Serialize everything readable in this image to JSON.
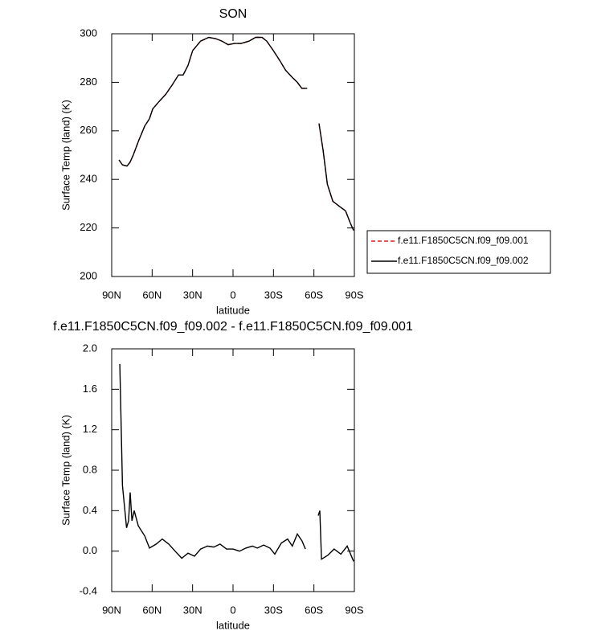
{
  "chart_data": [
    {
      "type": "line",
      "title": "SON",
      "xlabel": "latitude",
      "ylabel": "Surface Temp (land) (K)",
      "x": [
        84.6,
        82,
        78.7,
        76.5,
        74,
        70,
        65.5,
        62,
        59.6,
        55,
        50,
        45,
        40.5,
        37,
        33.4,
        30,
        24,
        18,
        13,
        8.3,
        3.6,
        -1,
        -6,
        -12,
        -16.7,
        -21.5,
        -25,
        -30,
        -34.6,
        -39,
        -44,
        -47.7,
        -51,
        -55,
        -59,
        -63.8,
        -66.8,
        -70,
        -74,
        -78.7,
        -83.5,
        -87,
        -89.4
      ],
      "series": [
        {
          "name": "f.e11.F1850C5CN.f09_f09.001",
          "color": "#e41a1c",
          "dash": true,
          "values": [
            248,
            246,
            245.5,
            247,
            250,
            256,
            262,
            265,
            269,
            272,
            275,
            279,
            283,
            283,
            287,
            293,
            297,
            298.5,
            298,
            297,
            295.5,
            296,
            296,
            297,
            298.5,
            298.5,
            297,
            293,
            289,
            285,
            282,
            280,
            277.5,
            277.5,
            null,
            263,
            252,
            238,
            231,
            229,
            227,
            222,
            219
          ]
        },
        {
          "name": "f.e11.F1850C5CN.f09_f09.002",
          "color": "#000000",
          "dash": false,
          "values": [
            248,
            246,
            245.5,
            247,
            250,
            256,
            262,
            265,
            269,
            272,
            275,
            279,
            283,
            283,
            287,
            293,
            297,
            298.5,
            298,
            297,
            295.5,
            296,
            296,
            297,
            298.5,
            298.5,
            297,
            293,
            289,
            285,
            282,
            280,
            277.5,
            277.5,
            null,
            263,
            252,
            238,
            231,
            229,
            227,
            222,
            219
          ]
        }
      ],
      "xlim": [
        90,
        -90
      ],
      "xticks": [
        {
          "value": 90,
          "label": "90N"
        },
        {
          "value": 60,
          "label": "60N"
        },
        {
          "value": 30,
          "label": "30N"
        },
        0,
        {
          "value": -30,
          "label": "30S"
        },
        {
          "value": -60,
          "label": "60S"
        },
        {
          "value": -90,
          "label": "90S"
        }
      ],
      "ylim": [
        200,
        300
      ],
      "yticks": [
        200,
        220,
        240,
        260,
        280,
        300
      ],
      "legend": "right"
    },
    {
      "type": "line",
      "title": "f.e11.F1850C5CN.f09_f09.002 - f.e11.F1850C5CN.f09_f09.001",
      "xlabel": "latitude",
      "ylabel": "Surface Temp (land) (K)",
      "x": [
        84,
        82,
        79,
        77.5,
        76.3,
        75,
        73.3,
        70.3,
        65.5,
        62,
        57,
        52.5,
        47.7,
        43,
        38,
        33.4,
        28.6,
        24,
        19,
        14.3,
        9.6,
        4.8,
        0,
        -4.8,
        -9.5,
        -14.3,
        -18,
        -22.7,
        -27.4,
        -31,
        -35.8,
        -40.5,
        -44,
        -47.7,
        -51.2,
        -53.7,
        -59,
        -63.2,
        -64.4,
        -65.6,
        -70.4,
        -75,
        -80,
        -84.7,
        -89.4
      ],
      "values": [
        1.85,
        0.65,
        0.23,
        0.3,
        0.58,
        0.3,
        0.4,
        0.25,
        0.15,
        0.03,
        0.07,
        0.12,
        0.07,
        0.0,
        -0.07,
        -0.02,
        -0.05,
        0.02,
        0.05,
        0.04,
        0.07,
        0.02,
        0.02,
        0.0,
        0.03,
        0.05,
        0.03,
        0.06,
        0.03,
        -0.03,
        0.08,
        0.12,
        0.05,
        0.17,
        0.1,
        0.02,
        null,
        0.35,
        0.4,
        -0.08,
        -0.04,
        0.02,
        -0.03,
        0.05,
        -0.1
      ],
      "color": "#000000",
      "xlim": [
        90,
        -90
      ],
      "xticks": [
        {
          "value": 90,
          "label": "90N"
        },
        {
          "value": 60,
          "label": "60N"
        },
        {
          "value": 30,
          "label": "30N"
        },
        0,
        {
          "value": -30,
          "label": "30S"
        },
        {
          "value": -60,
          "label": "60S"
        },
        {
          "value": -90,
          "label": "90S"
        }
      ],
      "ylim": [
        -0.4,
        2.0
      ],
      "yticks": [
        -0.4,
        {
          "value": 0,
          "label": "0.0"
        },
        0.4,
        0.8,
        1.2,
        1.6,
        {
          "value": 2.0,
          "label": "2.0"
        }
      ]
    }
  ]
}
